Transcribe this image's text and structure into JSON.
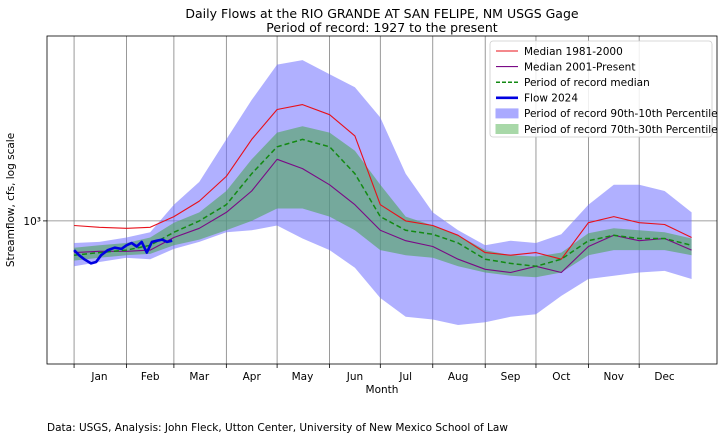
{
  "chart_data": {
    "type": "line",
    "title": "Daily Flows at the RIO GRANDE AT SAN FELIPE, NM USGS Gage",
    "subtitle": "Period of record: 1927 to the present",
    "xlabel": "Month",
    "ylabel": "Streamflow, cfs, log scale",
    "yscale": "log",
    "ylim": [
      200,
      8000
    ],
    "xlim": [
      -16,
      380
    ],
    "y_tick_labels": [
      "10³"
    ],
    "y_tick_values": [
      1000
    ],
    "x_tick_labels": [
      "Jan",
      "Feb",
      "Mar",
      "Apr",
      "May",
      "Jun",
      "Jul",
      "Aug",
      "Sep",
      "Oct",
      "Nov",
      "Dec"
    ],
    "x_tick_positions": [
      15,
      45,
      74,
      105,
      135,
      166,
      196,
      227,
      258,
      288,
      319,
      349
    ],
    "month_boundaries": [
      0,
      31,
      59,
      90,
      120,
      151,
      181,
      212,
      243,
      273,
      304,
      334
    ],
    "grid": true,
    "legend_position": "top-right",
    "legend": [
      {
        "label": "Median 1981-2000",
        "kind": "line",
        "color": "#e8101a"
      },
      {
        "label": "Median 2001-Present",
        "kind": "line",
        "color": "#7a0a86"
      },
      {
        "label": "Period of record median",
        "kind": "dashed",
        "color": "#138a13"
      },
      {
        "label": "Flow 2024",
        "kind": "thick",
        "color": "#0000e0"
      },
      {
        "label": "Period of record 90th-10th Percentile",
        "kind": "fill",
        "color": "#aaaaff"
      },
      {
        "label": "Period of record 70th-30th Percentile",
        "kind": "fill",
        "color": "#a8d8a8"
      }
    ],
    "colors": {
      "band_90_10": "#7070ff",
      "band_70_30": "#4ea55a",
      "median_1981_2000": "#e8101a",
      "median_2001_present": "#7a0a86",
      "record_median": "#138a13",
      "flow_2024": "#0000e0"
    },
    "x_days": [
      0,
      15,
      31,
      45,
      59,
      74,
      90,
      105,
      120,
      135,
      151,
      166,
      181,
      196,
      212,
      227,
      243,
      258,
      273,
      288,
      304,
      319,
      334,
      349,
      365
    ],
    "series": [
      {
        "key": "p90",
        "values": [
          780,
          790,
          830,
          880,
          1200,
          1550,
          2500,
          3900,
          5800,
          6100,
          5200,
          4500,
          3200,
          1700,
          1100,
          900,
          760,
          800,
          780,
          860,
          1200,
          1500,
          1500,
          1400,
          1100
        ]
      },
      {
        "key": "p10",
        "values": [
          600,
          630,
          660,
          650,
          730,
          790,
          880,
          900,
          950,
          820,
          720,
          590,
          420,
          340,
          330,
          310,
          320,
          340,
          350,
          430,
          520,
          540,
          560,
          570,
          520
        ]
      },
      {
        "key": "p70",
        "values": [
          740,
          760,
          780,
          830,
          980,
          1100,
          1400,
          2000,
          2700,
          2900,
          2700,
          2200,
          1500,
          1050,
          950,
          850,
          720,
          680,
          670,
          700,
          870,
          920,
          900,
          880,
          820
        ]
      },
      {
        "key": "p30",
        "values": [
          640,
          660,
          680,
          690,
          760,
          810,
          900,
          1000,
          1150,
          1150,
          1050,
          900,
          720,
          680,
          660,
          600,
          560,
          540,
          530,
          560,
          680,
          720,
          720,
          720,
          680
        ]
      },
      {
        "key": "median_1981_2000",
        "values": [
          950,
          930,
          920,
          930,
          1050,
          1250,
          1650,
          2500,
          3500,
          3700,
          3300,
          2600,
          1200,
          1000,
          950,
          850,
          700,
          680,
          700,
          650,
          980,
          1050,
          980,
          960,
          830
        ]
      },
      {
        "key": "median_2001_present",
        "values": [
          700,
          710,
          710,
          720,
          830,
          920,
          1100,
          1400,
          2000,
          1800,
          1500,
          1200,
          900,
          800,
          750,
          650,
          580,
          560,
          600,
          560,
          750,
          850,
          800,
          820,
          720
        ]
      },
      {
        "key": "record_median",
        "values": [
          680,
          700,
          720,
          760,
          880,
          1000,
          1200,
          1700,
          2300,
          2500,
          2300,
          1700,
          1050,
          900,
          860,
          780,
          650,
          620,
          600,
          650,
          800,
          850,
          820,
          820,
          760
        ]
      }
    ],
    "flow_2024": {
      "x": [
        0,
        3,
        6,
        10,
        13,
        16,
        20,
        24,
        28,
        31,
        34,
        37,
        40,
        43,
        46,
        49,
        52,
        55,
        58
      ],
      "values": [
        720,
        680,
        650,
        620,
        630,
        680,
        720,
        740,
        730,
        760,
        780,
        750,
        790,
        700,
        790,
        800,
        810,
        790,
        800
      ]
    }
  },
  "footer": "Data: USGS, Analysis: John Fleck, Utton Center, University of New Mexico School of Law"
}
